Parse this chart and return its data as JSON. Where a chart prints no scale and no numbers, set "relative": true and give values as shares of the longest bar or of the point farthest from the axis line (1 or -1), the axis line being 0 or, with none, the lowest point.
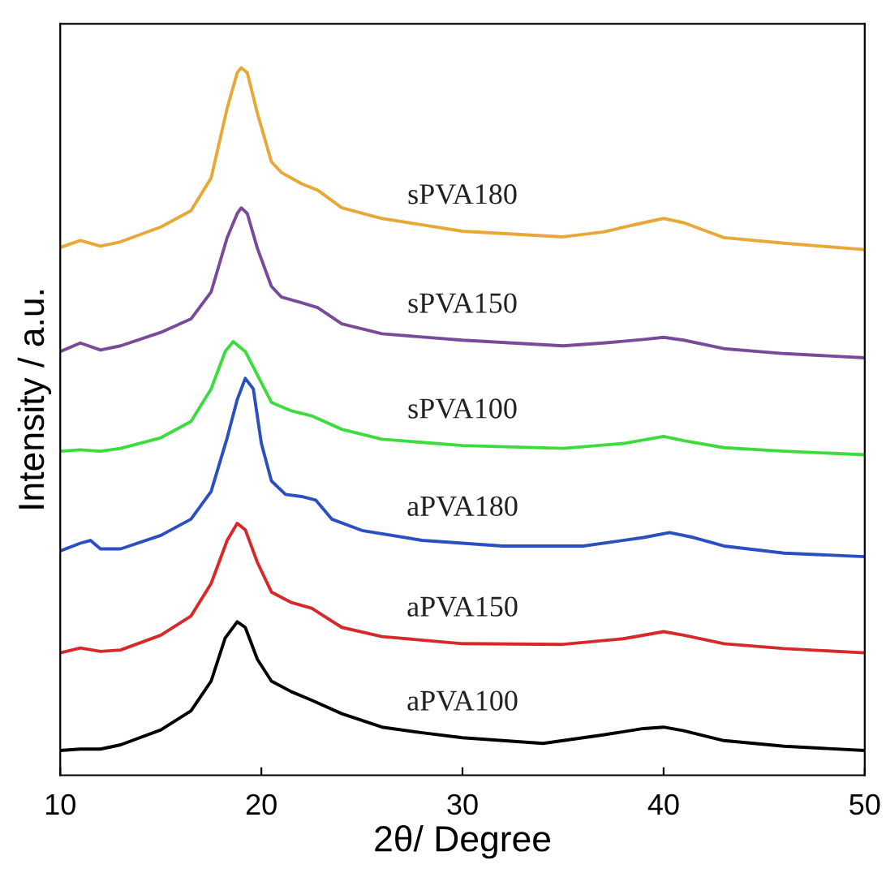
{
  "chart_data": {
    "type": "line",
    "relative": true,
    "xlabel": "2θ/ Degree",
    "ylabel": "Intensity / a.u.",
    "xlim": [
      10,
      50
    ],
    "xticks": [
      10,
      20,
      30,
      40,
      50
    ],
    "grid": false,
    "legend": false,
    "line_style": "solid",
    "marker": "none",
    "series": [
      {
        "name": "aPVA100",
        "color": "#000000",
        "x": [
          10,
          11,
          12,
          13,
          15,
          16.5,
          17.5,
          18.2,
          18.8,
          19.2,
          19.8,
          20.5,
          21.5,
          22.5,
          24,
          26,
          28,
          30,
          34,
          37,
          39,
          40,
          41,
          43,
          46,
          50
        ],
        "values": [
          0.035,
          0.037,
          0.037,
          0.043,
          0.064,
          0.091,
          0.133,
          0.194,
          0.217,
          0.209,
          0.164,
          0.133,
          0.118,
          0.106,
          0.087,
          0.068,
          0.06,
          0.053,
          0.045,
          0.057,
          0.066,
          0.068,
          0.063,
          0.049,
          0.041,
          0.035
        ]
      },
      {
        "name": "aPVA150",
        "color": "#d62a2a",
        "x": [
          10,
          11,
          12,
          13,
          15,
          16.5,
          17.5,
          18.3,
          18.8,
          19.2,
          19.8,
          20.5,
          21.5,
          22.5,
          24,
          26,
          30,
          35,
          38,
          40,
          41,
          43,
          46,
          50
        ],
        "values": [
          0.173,
          0.18,
          0.175,
          0.177,
          0.198,
          0.225,
          0.271,
          0.332,
          0.356,
          0.347,
          0.301,
          0.259,
          0.244,
          0.236,
          0.209,
          0.196,
          0.186,
          0.185,
          0.193,
          0.203,
          0.198,
          0.186,
          0.179,
          0.173
        ]
      },
      {
        "name": "aPVA180",
        "color": "#2a4fc0",
        "x": [
          10,
          11,
          11.5,
          12,
          13,
          15,
          16.5,
          17.5,
          18.3,
          18.8,
          19.2,
          19.6,
          20,
          20.5,
          21.2,
          22,
          22.7,
          23.5,
          25,
          28,
          32,
          36,
          39,
          40.3,
          41.5,
          43,
          46,
          50
        ],
        "values": [
          0.317,
          0.328,
          0.332,
          0.32,
          0.32,
          0.339,
          0.362,
          0.401,
          0.477,
          0.531,
          0.561,
          0.546,
          0.469,
          0.416,
          0.397,
          0.394,
          0.389,
          0.362,
          0.346,
          0.332,
          0.324,
          0.324,
          0.336,
          0.343,
          0.336,
          0.324,
          0.314,
          0.309
        ]
      },
      {
        "name": "sPVA100",
        "color": "#3cdc3c",
        "x": [
          10,
          11,
          12,
          13,
          15,
          16.5,
          17.5,
          18.2,
          18.6,
          19.2,
          20.5,
          21.5,
          22.5,
          24,
          26,
          30,
          35,
          38,
          40,
          41,
          43,
          46,
          50
        ],
        "values": [
          0.458,
          0.46,
          0.458,
          0.462,
          0.477,
          0.5,
          0.546,
          0.599,
          0.613,
          0.599,
          0.527,
          0.515,
          0.508,
          0.489,
          0.475,
          0.466,
          0.462,
          0.469,
          0.479,
          0.473,
          0.463,
          0.458,
          0.453
        ]
      },
      {
        "name": "sPVA150",
        "color": "#7a4a9a",
        "x": [
          10,
          11,
          12,
          13,
          15,
          16.5,
          17.5,
          18.3,
          18.8,
          19,
          19.3,
          19.8,
          20.5,
          21,
          22,
          22.8,
          24,
          26,
          30,
          35,
          37,
          39,
          40,
          41,
          43,
          46,
          50
        ],
        "values": [
          0.599,
          0.611,
          0.601,
          0.607,
          0.626,
          0.645,
          0.683,
          0.76,
          0.794,
          0.802,
          0.794,
          0.745,
          0.691,
          0.676,
          0.668,
          0.661,
          0.638,
          0.624,
          0.615,
          0.607,
          0.611,
          0.616,
          0.619,
          0.615,
          0.603,
          0.596,
          0.59
        ]
      },
      {
        "name": "sPVA180",
        "color": "#e8a838",
        "x": [
          10,
          11,
          12,
          13,
          15,
          16.5,
          17.5,
          18.3,
          18.8,
          19,
          19.3,
          19.8,
          20.5,
          21,
          22,
          22.8,
          24,
          26,
          30,
          35,
          37,
          39,
          40,
          41,
          43,
          46,
          50
        ],
        "values": [
          0.746,
          0.756,
          0.748,
          0.754,
          0.775,
          0.798,
          0.844,
          0.943,
          0.993,
          1,
          0.993,
          0.936,
          0.867,
          0.852,
          0.836,
          0.827,
          0.802,
          0.787,
          0.769,
          0.761,
          0.768,
          0.781,
          0.787,
          0.781,
          0.76,
          0.752,
          0.743
        ]
      }
    ]
  }
}
